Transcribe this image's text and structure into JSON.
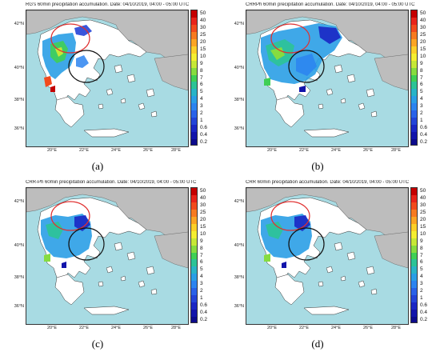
{
  "lat_ticks": [
    "42°N",
    "40°N",
    "38°N",
    "36°N"
  ],
  "lon_ticks": [
    "20°E",
    "22°E",
    "24°E",
    "26°E",
    "28°E"
  ],
  "colorbar": {
    "labels": [
      "50",
      "40",
      "30",
      "25",
      "20",
      "15",
      "10",
      "9",
      "8",
      "7",
      "6",
      "5",
      "4",
      "3",
      "2",
      "1",
      "0.6",
      "0.4",
      "0.2"
    ],
    "colors": [
      "#c40000",
      "#e8231a",
      "#f24a1d",
      "#f77a20",
      "#fba523",
      "#fcd028",
      "#f5ee30",
      "#c6e837",
      "#86dc40",
      "#3fcf55",
      "#2cc396",
      "#29b4c7",
      "#2a9ee6",
      "#2c84f0",
      "#2a62e8",
      "#2344d8",
      "#1a26c4",
      "#1214aa",
      "#0c0a8c"
    ]
  },
  "colors": {
    "sea": "#a8dbe3",
    "land_greece": "#ffffff",
    "land_other": "#bdbdbd",
    "red_circle": "#e03030",
    "black_circle": "#111111"
  },
  "panels": [
    {
      "title": "RG's 60min precipitation accumulation. Date: 04/10/2019, 04:00 - 05:00 UTC",
      "label": "(a)"
    },
    {
      "title": "CRRPh 60min precipitation accumulation. Date: 04/10/2019, 04:00 - 05:00 UTC",
      "label": "(b)"
    },
    {
      "title": "CRR-Ph 60min precipitation accumulation. Date: 04/10/2019, 04:00 - 05:00 UTC",
      "label": "(c)"
    },
    {
      "title": "CRR 60min precipitation accumulation. Date: 04/10/2019, 04:00 - 05:00 UTC",
      "label": "(d)"
    }
  ]
}
